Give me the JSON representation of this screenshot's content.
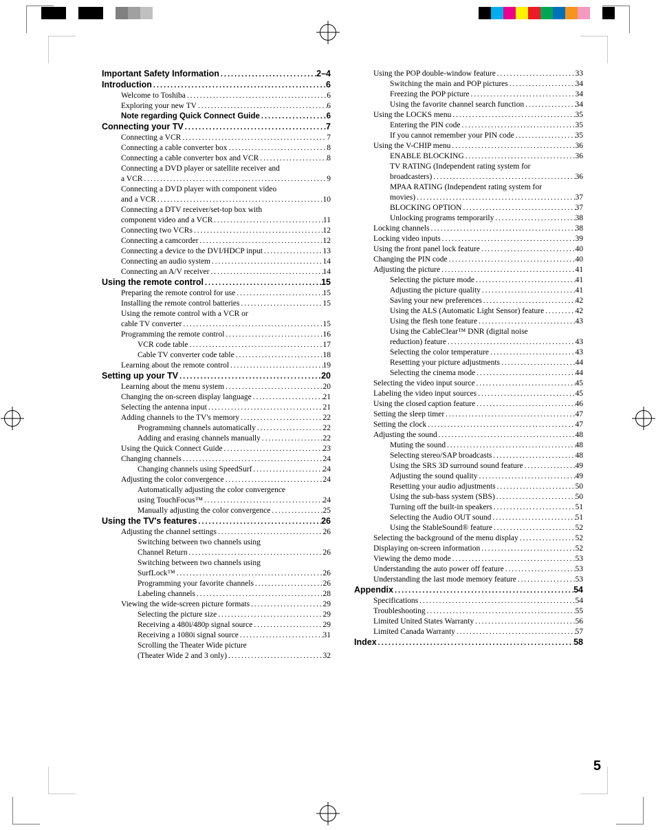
{
  "page_number": "5",
  "reg_colors_left": [
    "#000000",
    "#000000",
    "#ffffff",
    "#000000",
    "#000000",
    "#ffffff",
    "#808080",
    "#a0a0a0",
    "#c0c0c0",
    "#ffffff",
    "#ffffff",
    "#ffffff"
  ],
  "reg_colors_right": [
    "#ffffff",
    "#000000",
    "#00aeef",
    "#ec008c",
    "#fff200",
    "#ed1c24",
    "#00a651",
    "#0072bc",
    "#f7941d",
    "#f49ac1",
    "#ffffff",
    "#000000"
  ],
  "leader": "............................................................................................................",
  "left_col": [
    {
      "lvl": "l0",
      "text": "Important Safety Information",
      "page": "2–4"
    },
    {
      "lvl": "l0",
      "text": "Introduction",
      "page": "6"
    },
    {
      "lvl": "l1",
      "text": "Welcome to Toshiba",
      "page": "6"
    },
    {
      "lvl": "l1",
      "text": "Exploring your new TV",
      "page": "6"
    },
    {
      "lvl": "l0sub",
      "text": "Note regarding Quick Connect Guide",
      "page": "6"
    },
    {
      "lvl": "l0",
      "text": "Connecting your TV",
      "page": "7"
    },
    {
      "lvl": "l1",
      "text": "Connecting a VCR",
      "page": "7"
    },
    {
      "lvl": "l1",
      "text": "Connecting a cable converter box",
      "page": "8"
    },
    {
      "lvl": "l1",
      "text": "Connecting a cable converter box and VCR",
      "page": "8"
    },
    {
      "lvl": "l1",
      "wrap": true,
      "first": "Connecting a DVD player or satellite receiver and",
      "cont": "a VCR",
      "page": "9"
    },
    {
      "lvl": "l1",
      "wrap": true,
      "first": "Connecting a DVD player with component video",
      "cont": "and a VCR",
      "page": "10"
    },
    {
      "lvl": "l1",
      "wrap": true,
      "first": "Connecting a DTV receiver/set-top box with",
      "cont": "component video and a VCR",
      "page": "11"
    },
    {
      "lvl": "l1",
      "text": "Connecting two VCRs",
      "page": "12"
    },
    {
      "lvl": "l1",
      "text": "Connecting a camcorder",
      "page": "12"
    },
    {
      "lvl": "l1",
      "text": "Connecting a device to the DVI/HDCP input",
      "page": "13"
    },
    {
      "lvl": "l1",
      "text": "Connecting an audio system",
      "page": "14"
    },
    {
      "lvl": "l1",
      "text": "Connecting an A/V receiver",
      "page": "14"
    },
    {
      "lvl": "l0",
      "text": "Using the remote control",
      "page": "15"
    },
    {
      "lvl": "l1",
      "text": "Preparing the remote control for use",
      "page": "15"
    },
    {
      "lvl": "l1",
      "text": "Installing the remote control batteries",
      "page": "15"
    },
    {
      "lvl": "l1",
      "wrap": true,
      "first": "Using the remote control with a VCR or",
      "cont": "cable TV converter",
      "page": "15"
    },
    {
      "lvl": "l1",
      "text": "Programming the remote control",
      "page": "16"
    },
    {
      "lvl": "l2",
      "text": "VCR code table",
      "page": "17"
    },
    {
      "lvl": "l2",
      "text": "Cable TV converter code table",
      "page": "18"
    },
    {
      "lvl": "l1",
      "text": "Learning about the remote control",
      "page": "19"
    },
    {
      "lvl": "l0",
      "text": "Setting up your TV",
      "page": "20"
    },
    {
      "lvl": "l1",
      "text": "Learning about the menu system",
      "page": "20"
    },
    {
      "lvl": "l1",
      "text": "Changing the on-screen display language",
      "page": "21"
    },
    {
      "lvl": "l1",
      "text": "Selecting the antenna input",
      "page": "21"
    },
    {
      "lvl": "l1",
      "text": "Adding channels to the TV's memory",
      "page": "22"
    },
    {
      "lvl": "l2",
      "text": "Programming channels automatically",
      "page": "22"
    },
    {
      "lvl": "l2",
      "text": "Adding and erasing channels manually",
      "page": "22"
    },
    {
      "lvl": "l1",
      "text": "Using the Quick Connect Guide",
      "page": "23"
    },
    {
      "lvl": "l1",
      "text": "Changing channels",
      "page": "24"
    },
    {
      "lvl": "l2",
      "text": "Changing channels using SpeedSurf",
      "page": "24"
    },
    {
      "lvl": "l1",
      "text": "Adjusting the color convergence",
      "page": "24"
    },
    {
      "lvl": "l2",
      "wrap": true,
      "first": "Automatically adjusting the color convergence",
      "cont": "using TouchFocus™",
      "page": "24"
    },
    {
      "lvl": "l2",
      "text": "Manually adjusting the color convergence",
      "page": "25"
    },
    {
      "lvl": "l0",
      "text": "Using the TV's features",
      "page": "26"
    },
    {
      "lvl": "l1",
      "text": "Adjusting the channel settings",
      "page": "26"
    },
    {
      "lvl": "l2",
      "wrap": true,
      "first": "Switching between two channels using",
      "cont": "Channel Return",
      "page": "26"
    },
    {
      "lvl": "l2",
      "wrap": true,
      "first": "Switching between two channels using",
      "cont": "SurfLock™",
      "page": "26"
    },
    {
      "lvl": "l2",
      "text": "Programming your favorite channels",
      "page": "26"
    },
    {
      "lvl": "l2",
      "text": "Labeling channels",
      "page": "28"
    },
    {
      "lvl": "l1",
      "text": "Viewing the wide-screen picture formats",
      "page": "29"
    },
    {
      "lvl": "l2",
      "text": "Selecting the picture size",
      "page": "29"
    },
    {
      "lvl": "l2",
      "text": "Receiving a 480i/480p signal source",
      "page": "29"
    },
    {
      "lvl": "l2",
      "text": "Receiving a 1080i signal source",
      "page": "31"
    },
    {
      "lvl": "l2",
      "wrap": true,
      "first": "Scrolling the Theater Wide picture",
      "cont": "(Theater Wide 2 and 3 only)",
      "page": "32"
    }
  ],
  "right_col": [
    {
      "lvl": "l1",
      "text": "Using the POP double-window feature",
      "page": "33"
    },
    {
      "lvl": "l2",
      "text": "Switching the main and POP pictures",
      "page": "34"
    },
    {
      "lvl": "l2",
      "text": "Freezing the POP picture",
      "page": "34"
    },
    {
      "lvl": "l2",
      "text": "Using the favorite channel search function",
      "page": "34"
    },
    {
      "lvl": "l1",
      "text": "Using the LOCKS menu",
      "page": "35"
    },
    {
      "lvl": "l2",
      "text": "Entering the PIN code",
      "page": "35"
    },
    {
      "lvl": "l2",
      "text": "If you cannot remember your PIN code",
      "page": "35"
    },
    {
      "lvl": "l1",
      "text": "Using the V-CHIP menu",
      "page": "36"
    },
    {
      "lvl": "l2",
      "text": "ENABLE BLOCKING",
      "page": "36"
    },
    {
      "lvl": "l2",
      "wrap": true,
      "first": "TV RATING (Independent rating system for",
      "cont": "broadcasters)",
      "page": "36"
    },
    {
      "lvl": "l2",
      "wrap": true,
      "first": "MPAA RATING (Independent rating system for",
      "cont": "movies)",
      "page": "37"
    },
    {
      "lvl": "l2",
      "text": "BLOCKING OPTION",
      "page": "37"
    },
    {
      "lvl": "l2",
      "text": "Unlocking programs temporarily",
      "page": "38"
    },
    {
      "lvl": "l1",
      "text": "Locking channels",
      "page": "38"
    },
    {
      "lvl": "l1",
      "text": "Locking video inputs",
      "page": "39"
    },
    {
      "lvl": "l1",
      "text": "Using the front panel lock feature",
      "page": "40"
    },
    {
      "lvl": "l1",
      "text": "Changing the PIN code",
      "page": "40"
    },
    {
      "lvl": "l1",
      "text": "Adjusting the picture",
      "page": "41"
    },
    {
      "lvl": "l2",
      "text": "Selecting the picture mode",
      "page": "41"
    },
    {
      "lvl": "l2",
      "text": "Adjusting the picture quality",
      "page": "41"
    },
    {
      "lvl": "l2",
      "text": "Saving your new preferences",
      "page": "42"
    },
    {
      "lvl": "l2",
      "text": "Using the ALS (Automatic Light Sensor) feature",
      "page": "42"
    },
    {
      "lvl": "l2",
      "text": "Using the flesh tone feature",
      "page": "43"
    },
    {
      "lvl": "l2",
      "wrap": true,
      "first": "Using the CableClear™ DNR (digital noise",
      "cont": "reduction) feature",
      "page": "43"
    },
    {
      "lvl": "l2",
      "text": "Selecting the color temperature",
      "page": "43"
    },
    {
      "lvl": "l2",
      "text": "Resetting your picture adjustments",
      "page": "44"
    },
    {
      "lvl": "l2",
      "text": "Selecting the cinema mode",
      "page": "44"
    },
    {
      "lvl": "l1",
      "text": "Selecting the video input source",
      "page": "45"
    },
    {
      "lvl": "l1",
      "text": "Labeling the video input sources",
      "page": "45"
    },
    {
      "lvl": "l1",
      "text": "Using the closed caption feature",
      "page": "46"
    },
    {
      "lvl": "l1",
      "text": "Setting the sleep timer",
      "page": "47"
    },
    {
      "lvl": "l1",
      "text": "Setting the clock",
      "page": "47"
    },
    {
      "lvl": "l1",
      "text": "Adjusting the sound",
      "page": "48"
    },
    {
      "lvl": "l2",
      "text": "Muting the sound",
      "page": "48"
    },
    {
      "lvl": "l2",
      "text": "Selecting stereo/SAP broadcasts",
      "page": "48"
    },
    {
      "lvl": "l2",
      "text": "Using the SRS 3D surround sound feature",
      "page": "49"
    },
    {
      "lvl": "l2",
      "text": "Adjusting the sound quality",
      "page": "49"
    },
    {
      "lvl": "l2",
      "text": "Resetting your audio adjustments",
      "page": "50"
    },
    {
      "lvl": "l2",
      "text": "Using the sub-bass system (SBS)",
      "page": "50"
    },
    {
      "lvl": "l2",
      "text": "Turning off the built-in speakers",
      "page": "51"
    },
    {
      "lvl": "l2",
      "text": "Selecting the Audio OUT sound",
      "page": "51"
    },
    {
      "lvl": "l2",
      "text": "Using the StableSound® feature",
      "page": "52"
    },
    {
      "lvl": "l1",
      "text": "Selecting the background of the menu display",
      "page": "52"
    },
    {
      "lvl": "l1",
      "text": "Displaying on-screen information",
      "page": "52"
    },
    {
      "lvl": "l1",
      "text": "Viewing the demo mode",
      "page": "53"
    },
    {
      "lvl": "l1",
      "text": "Understanding the auto power off feature",
      "page": "53"
    },
    {
      "lvl": "l1",
      "text": "Understanding the last mode memory feature",
      "page": "53"
    },
    {
      "lvl": "l0",
      "text": "Appendix",
      "page": "54"
    },
    {
      "lvl": "l1",
      "text": "Specifications",
      "page": "54"
    },
    {
      "lvl": "l1",
      "text": "Troubleshooting",
      "page": "55"
    },
    {
      "lvl": "l1",
      "text": "Limited United States Warranty",
      "page": "56"
    },
    {
      "lvl": "l1",
      "text": "Limited Canada Warranty",
      "page": "57"
    },
    {
      "lvl": "l0",
      "text": "Index",
      "page": "58"
    }
  ]
}
